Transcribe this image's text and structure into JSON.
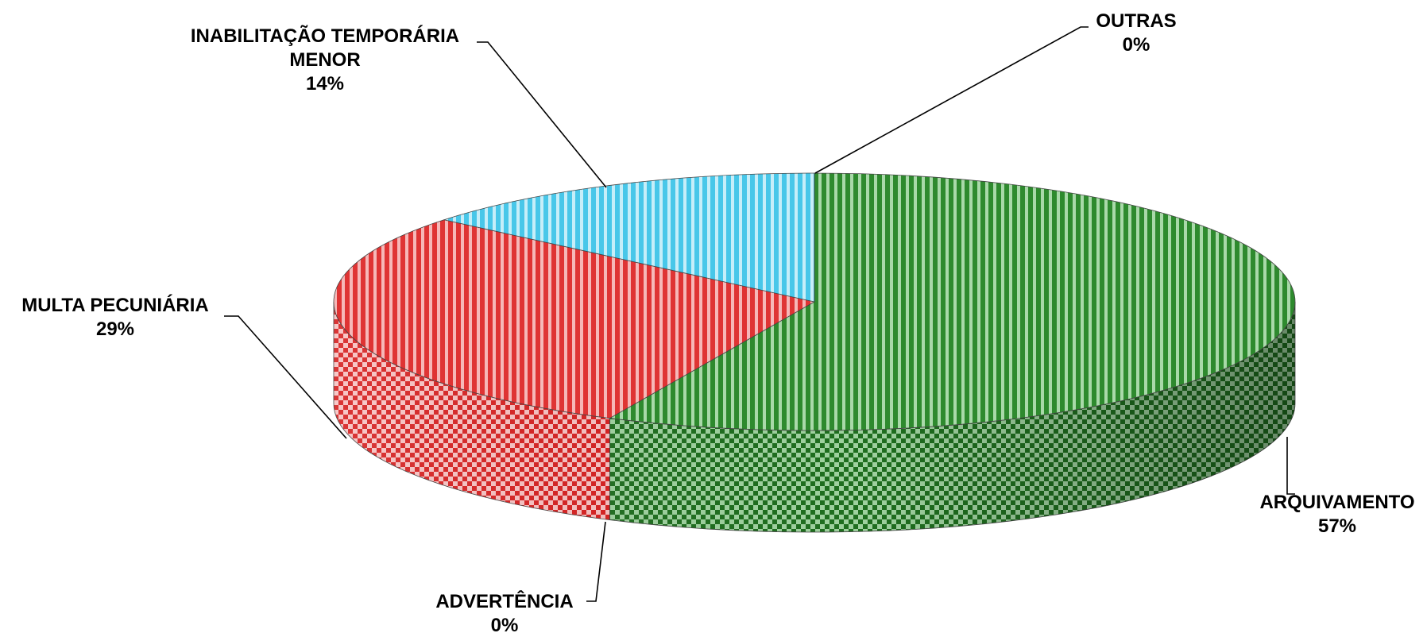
{
  "chart_data": {
    "type": "pie",
    "title": "",
    "slices": [
      {
        "label": "ARQUIVAMENTO",
        "value": 57,
        "value_label": "57%",
        "color": "#3f9a3f"
      },
      {
        "label": "ADVERTÊNCIA",
        "value": 0,
        "value_label": "0%",
        "color": "#e05555"
      },
      {
        "label": "MULTA PECUNIÁRIA",
        "value": 29,
        "value_label": "29%",
        "color": "#e05555"
      },
      {
        "label": "INABILITAÇÃO TEMPORÁRIA MENOR",
        "value": 14,
        "value_label": "14%",
        "color": "#66d0ec"
      },
      {
        "label": "OUTRAS",
        "value": 0,
        "value_label": "0%",
        "color": "#66d0ec"
      }
    ],
    "style": "3d-tilted",
    "legend": "none"
  }
}
